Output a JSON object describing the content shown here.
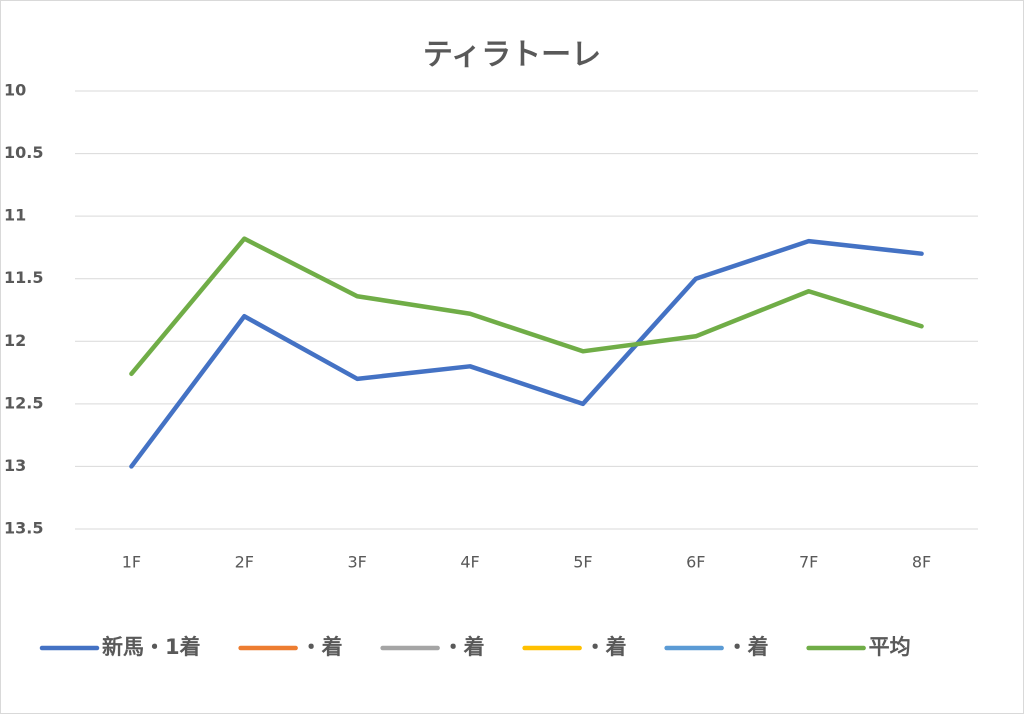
{
  "chart_data": {
    "type": "line",
    "title": "ティラトーレ",
    "categories": [
      "1F",
      "2F",
      "3F",
      "4F",
      "5F",
      "6F",
      "7F",
      "8F"
    ],
    "series": [
      {
        "name": "新馬・1着",
        "color": "#4472c4",
        "values": [
          13.0,
          11.8,
          12.3,
          12.2,
          12.5,
          11.5,
          11.2,
          11.3
        ]
      },
      {
        "name": "・着",
        "color": "#ed7d31",
        "values": [
          null,
          null,
          null,
          null,
          null,
          null,
          null,
          null
        ]
      },
      {
        "name": "・着",
        "color": "#a5a5a5",
        "values": [
          null,
          null,
          null,
          null,
          null,
          null,
          null,
          null
        ]
      },
      {
        "name": "・着",
        "color": "#ffc000",
        "values": [
          null,
          null,
          null,
          null,
          null,
          null,
          null,
          null
        ]
      },
      {
        "name": "・着",
        "color": "#5b9bd5",
        "values": [
          null,
          null,
          null,
          null,
          null,
          null,
          null,
          null
        ]
      },
      {
        "name": "平均",
        "color": "#70ad47",
        "values": [
          12.26,
          11.18,
          11.64,
          11.78,
          12.08,
          11.96,
          11.6,
          11.88
        ]
      }
    ],
    "ylim": [
      10,
      13.5
    ],
    "yticks": [
      10,
      10.5,
      11,
      11.5,
      12,
      12.5,
      13,
      13.5
    ],
    "y_inverted": true,
    "grid": true,
    "legend": "bottom"
  }
}
